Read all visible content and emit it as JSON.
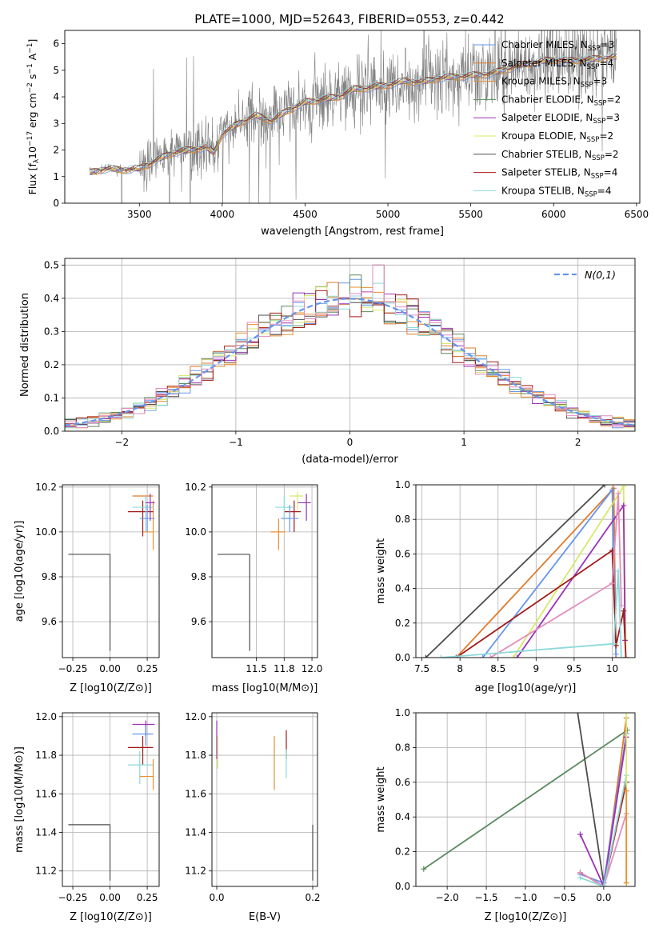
{
  "figure_title": "PLATE=1000, MJD=52643, FIBERID=0553, z=0.442",
  "colors": {
    "Chabrier MILES": "#6495ed",
    "Salpeter MILES": "#e07b2a",
    "Kroupa MILES": "#e8902f",
    "Chabrier ELODIE": "#5a8a5e",
    "Salpeter ELODIE": "#9b30b8",
    "Kroupa ELODIE": "#d8e86a",
    "Chabrier STELIB": "#4d4d4d",
    "Salpeter STELIB": "#a31a1a",
    "Kroupa STELIB": "#8cd9d9",
    "pink": "#e38cbd",
    "data": "#808080",
    "normal": "#6495ed"
  },
  "chart_data": [
    {
      "id": "spectrum",
      "type": "line",
      "xlabel": "wavelength [Angstrom, rest frame]",
      "ylabel": "Flux [f",
      "ylabel_unit": "10",
      "ylabel_rest": " erg cm",
      "xlim": [
        3050,
        6520
      ],
      "ylim": [
        0,
        6.5
      ],
      "xticks": [
        3500,
        4000,
        4500,
        5000,
        5500,
        6000,
        6500
      ],
      "yticks": [
        0,
        1,
        2,
        3,
        4,
        5,
        6
      ],
      "legend_position": "top-right",
      "legend": [
        {
          "model": "Chabrier MILES",
          "n": "3"
        },
        {
          "model": "Salpeter MILES",
          "n": "4"
        },
        {
          "model": "Kroupa MILES",
          "n": "3"
        },
        {
          "model": "Chabrier ELODIE",
          "n": "2"
        },
        {
          "model": "Salpeter ELODIE",
          "n": "3"
        },
        {
          "model": "Kroupa ELODIE",
          "n": "2"
        },
        {
          "model": "Chabrier STELIB",
          "n": "2"
        },
        {
          "model": "Salpeter STELIB",
          "n": "4"
        },
        {
          "model": "Kroupa STELIB",
          "n": "4"
        }
      ],
      "data_start": 3200,
      "data_end": 6380,
      "continuum": [
        [
          3200,
          1.15
        ],
        [
          3300,
          1.3
        ],
        [
          3400,
          1.25
        ],
        [
          3500,
          1.3
        ],
        [
          3600,
          1.6
        ],
        [
          3700,
          1.9
        ],
        [
          3800,
          2.0
        ],
        [
          3900,
          2.1
        ],
        [
          3950,
          1.9
        ],
        [
          4000,
          2.6
        ],
        [
          4100,
          3.0
        ],
        [
          4200,
          3.3
        ],
        [
          4300,
          3.1
        ],
        [
          4400,
          3.5
        ],
        [
          4500,
          3.8
        ],
        [
          4600,
          3.9
        ],
        [
          4700,
          4.0
        ],
        [
          4800,
          4.3
        ],
        [
          4900,
          4.35
        ],
        [
          5000,
          4.45
        ],
        [
          5100,
          4.6
        ],
        [
          5200,
          4.55
        ],
        [
          5300,
          4.7
        ],
        [
          5400,
          4.75
        ],
        [
          5500,
          4.8
        ],
        [
          5600,
          4.85
        ],
        [
          5700,
          5.0
        ],
        [
          5800,
          5.2
        ],
        [
          5900,
          5.3
        ],
        [
          6000,
          5.4
        ],
        [
          6100,
          5.35
        ],
        [
          6200,
          5.4
        ],
        [
          6300,
          5.45
        ],
        [
          6380,
          5.5
        ]
      ]
    },
    {
      "id": "residuals",
      "type": "step",
      "xlabel": "(data-model)/error",
      "ylabel": "Normed distribution",
      "xlim": [
        -2.5,
        2.5
      ],
      "ylim": [
        0,
        0.52
      ],
      "xticks": [
        -2,
        -1,
        0,
        1,
        2
      ],
      "xtick_labels": [
        "−2",
        "−1",
        "0",
        "1",
        "2"
      ],
      "yticks": [
        0,
        0.1,
        0.2,
        0.3,
        0.4,
        0.5
      ],
      "ytick_labels": [
        "0.0",
        "0.1",
        "0.2",
        "0.3",
        "0.4",
        "0.5"
      ],
      "legend_label": "N(0,1)",
      "legend_position": "top-right",
      "grid": true
    },
    {
      "id": "age-vs-Z",
      "type": "errorbar",
      "xlabel": "Z [log10(Z/Z⊙)]",
      "ylabel": "age [log10(age/yr)]",
      "xlim": [
        -0.32,
        0.33
      ],
      "ylim": [
        9.44,
        10.21
      ],
      "xticks": [
        -0.25,
        0.0,
        0.25
      ],
      "xtick_labels": [
        "−0.25",
        "0.00",
        "0.25"
      ],
      "yticks": [
        9.6,
        9.8,
        10.0,
        10.2
      ],
      "ytick_labels": [
        "9.6",
        "9.8",
        "10.0",
        "10.2"
      ],
      "grid": true,
      "points": [
        {
          "c": "Chabrier STELIB",
          "x": 0.0,
          "xl": -0.28,
          "xh": 0.0,
          "y": 9.9,
          "yl": 9.47,
          "yh": 9.9
        },
        {
          "c": "Salpeter MILES",
          "x": 0.22,
          "xl": 0.15,
          "xh": 0.29,
          "y": 10.16,
          "yl": 10.16,
          "yh": 10.16
        },
        {
          "c": "Kroupa MILES",
          "x": 0.29,
          "xl": 0.22,
          "xh": 0.29,
          "y": 10.0,
          "yl": 9.92,
          "yh": 10.14
        },
        {
          "c": "Salpeter STELIB",
          "x": 0.22,
          "xl": 0.12,
          "xh": 0.29,
          "y": 10.09,
          "yl": 9.98,
          "yh": 10.14
        },
        {
          "c": "Kroupa STELIB",
          "x": 0.24,
          "xl": 0.15,
          "xh": 0.29,
          "y": 10.11,
          "yl": 10.0,
          "yh": 10.16
        },
        {
          "c": "Chabrier MILES",
          "x": 0.25,
          "xl": 0.2,
          "xh": 0.3,
          "y": 10.06,
          "yl": 10.0,
          "yh": 10.12
        },
        {
          "c": "Salpeter ELODIE",
          "x": 0.27,
          "xl": 0.24,
          "xh": 0.3,
          "y": 10.13,
          "yl": 10.05,
          "yh": 10.17
        }
      ]
    },
    {
      "id": "age-vs-mass",
      "type": "errorbar",
      "xlabel": "mass [log10(M/M⊙)]",
      "xlim": [
        11.1,
        12.05
      ],
      "ylim": [
        9.44,
        10.21
      ],
      "xticks": [
        11.5,
        11.75,
        12.0
      ],
      "xtick_labels": [
        "11.5",
        "11.8",
        "12.0"
      ],
      "yticks": [
        9.6,
        9.8,
        10.0,
        10.2
      ],
      "ytick_labels": [
        "9.6",
        "9.8",
        "10.0",
        "10.2"
      ],
      "grid": true,
      "points": [
        {
          "c": "Chabrier STELIB",
          "x": 11.44,
          "xl": 11.15,
          "xh": 11.44,
          "y": 9.9,
          "yl": 9.47,
          "yh": 9.9
        },
        {
          "c": "Kroupa MILES",
          "x": 11.7,
          "xl": 11.63,
          "xh": 11.76,
          "y": 10.0,
          "yl": 9.92,
          "yh": 10.06
        },
        {
          "c": "Salpeter STELIB",
          "x": 11.84,
          "xl": 11.75,
          "xh": 11.9,
          "y": 10.09,
          "yl": 10.0,
          "yh": 10.14
        },
        {
          "c": "Kroupa STELIB",
          "x": 11.75,
          "xl": 11.67,
          "xh": 11.83,
          "y": 10.11,
          "yl": 10.05,
          "yh": 10.16
        },
        {
          "c": "Chabrier MILES",
          "x": 11.8,
          "xl": 11.72,
          "xh": 11.88,
          "y": 10.06,
          "yl": 10.0,
          "yh": 10.12
        },
        {
          "c": "Salpeter ELODIE",
          "x": 11.95,
          "xl": 11.87,
          "xh": 11.99,
          "y": 10.13,
          "yl": 10.05,
          "yh": 10.17
        },
        {
          "c": "Kroupa ELODIE",
          "x": 11.87,
          "xl": 11.8,
          "xh": 11.92,
          "y": 10.16,
          "yl": 10.1,
          "yh": 10.18
        }
      ]
    },
    {
      "id": "mass-weight-vs-age",
      "type": "line",
      "xlabel": "age [log10(age/yr)]",
      "ylabel": "mass weight",
      "xlim": [
        7.42,
        10.3
      ],
      "ylim": [
        0,
        1
      ],
      "xticks": [
        7.5,
        8.0,
        8.5,
        9.0,
        9.5,
        10.0
      ],
      "yticks": [
        0,
        0.2,
        0.4,
        0.6,
        0.8,
        1.0
      ],
      "ytick_labels": [
        "0.0",
        "0.2",
        "0.4",
        "0.6",
        "0.8",
        "1.0"
      ],
      "grid": true,
      "series": [
        {
          "c": "Chabrier STELIB",
          "points": [
            [
              7.55,
              0.0
            ],
            [
              9.9,
              1.0
            ]
          ]
        },
        {
          "c": "Salpeter MILES",
          "points": [
            [
              7.95,
              0.0
            ],
            [
              10.02,
              0.98
            ],
            [
              10.05,
              0.0
            ]
          ]
        },
        {
          "c": "Chabrier MILES",
          "points": [
            [
              8.3,
              0.0
            ],
            [
              10.0,
              0.97
            ],
            [
              10.05,
              0.02
            ]
          ]
        },
        {
          "c": "Kroupa ELODIE",
          "points": [
            [
              8.7,
              0.0
            ],
            [
              10.15,
              0.99
            ],
            [
              10.18,
              0.0
            ]
          ]
        },
        {
          "c": "Salpeter ELODIE",
          "points": [
            [
              8.75,
              0.0
            ],
            [
              10.15,
              0.88
            ],
            [
              10.17,
              0.1
            ]
          ]
        },
        {
          "c": "Salpeter STELIB",
          "points": [
            [
              7.95,
              0.0
            ],
            [
              10.0,
              0.62
            ],
            [
              10.05,
              0.07
            ],
            [
              10.15,
              0.27
            ],
            [
              10.18,
              0.0
            ]
          ]
        },
        {
          "c": "pink",
          "points": [
            [
              8.4,
              0.0
            ],
            [
              10.0,
              0.43
            ],
            [
              10.08,
              0.95
            ],
            [
              10.12,
              0.3
            ]
          ]
        },
        {
          "c": "Kroupa STELIB",
          "points": [
            [
              7.75,
              0.0
            ],
            [
              10.02,
              0.08
            ],
            [
              10.08,
              0.5
            ],
            [
              10.12,
              0.0
            ]
          ]
        }
      ]
    },
    {
      "id": "mass-vs-Z",
      "type": "errorbar",
      "xlabel": "Z [log10(Z/Z⊙)]",
      "ylabel": "mass [log10(M/M⊙)]",
      "xlim": [
        -0.32,
        0.33
      ],
      "ylim": [
        11.12,
        12.02
      ],
      "xticks": [
        -0.25,
        0.0,
        0.25
      ],
      "xtick_labels": [
        "−0.25",
        "0.00",
        "0.25"
      ],
      "yticks": [
        11.2,
        11.4,
        11.6,
        11.8,
        12.0
      ],
      "ytick_labels": [
        "11.2",
        "11.4",
        "11.6",
        "11.8",
        "12.0"
      ],
      "grid": true,
      "points": [
        {
          "c": "Chabrier STELIB",
          "x": 0.0,
          "xl": -0.28,
          "xh": 0.0,
          "y": 11.44,
          "yl": 11.15,
          "yh": 11.44
        },
        {
          "c": "Salpeter ELODIE",
          "x": 0.24,
          "xl": 0.15,
          "xh": 0.3,
          "y": 11.96,
          "yl": 11.9,
          "yh": 11.98
        },
        {
          "c": "Chabrier MILES",
          "x": 0.24,
          "xl": 0.15,
          "xh": 0.29,
          "y": 11.91,
          "yl": 11.85,
          "yh": 11.95
        },
        {
          "c": "Salpeter STELIB",
          "x": 0.22,
          "xl": 0.12,
          "xh": 0.29,
          "y": 11.84,
          "yl": 11.75,
          "yh": 11.9
        },
        {
          "c": "Kroupa STELIB",
          "x": 0.2,
          "xl": 0.12,
          "xh": 0.29,
          "y": 11.75,
          "yl": 11.65,
          "yh": 11.82
        },
        {
          "c": "Kroupa MILES",
          "x": 0.29,
          "xl": 0.2,
          "xh": 0.29,
          "y": 11.69,
          "yl": 11.62,
          "yh": 11.78
        }
      ]
    },
    {
      "id": "mass-vs-EBV",
      "type": "errorbar",
      "xlabel": "E(B-V)",
      "xlim": [
        -0.01,
        0.21
      ],
      "ylim": [
        11.12,
        12.02
      ],
      "xticks": [
        0.0,
        0.2
      ],
      "xtick_labels": [
        "0.0",
        "0.2"
      ],
      "yticks": [
        11.2,
        11.4,
        11.6,
        11.8,
        12.0
      ],
      "ytick_labels": [
        "11.2",
        "11.4",
        "11.6",
        "11.8",
        "12.0"
      ],
      "grid": true,
      "points": [
        {
          "c": "Chabrier STELIB",
          "x": 0.2,
          "xl": 0.2,
          "xh": 0.2,
          "y": 11.44,
          "yl": 11.15,
          "yh": 11.44
        },
        {
          "c": "Salpeter ELODIE",
          "x": 0.0,
          "xl": 0.0,
          "xh": 0.0,
          "y": 11.9,
          "yl": 11.78,
          "yh": 11.98
        },
        {
          "c": "Kroupa ELODIE",
          "x": 0.002,
          "xl": 0.002,
          "xh": 0.002,
          "y": 11.82,
          "yl": 11.73,
          "yh": 11.9
        },
        {
          "c": "Salpeter STELIB",
          "x": 0.145,
          "xl": 0.145,
          "xh": 0.145,
          "y": 11.85,
          "yl": 11.78,
          "yh": 11.93
        },
        {
          "c": "Kroupa MILES",
          "x": 0.12,
          "xl": 0.12,
          "xh": 0.12,
          "y": 11.78,
          "yl": 11.62,
          "yh": 11.9
        },
        {
          "c": "Kroupa STELIB",
          "x": 0.145,
          "xl": 0.145,
          "xh": 0.145,
          "y": 11.75,
          "yl": 11.68,
          "yh": 11.83
        }
      ]
    },
    {
      "id": "mass-weight-vs-Z",
      "type": "line",
      "xlabel": "Z [log10(Z/Z⊙)]",
      "ylabel": "mass weight",
      "xlim": [
        -2.4,
        0.4
      ],
      "ylim": [
        0,
        1
      ],
      "xticks": [
        -2.0,
        -1.5,
        -1.0,
        -0.5,
        0.0
      ],
      "xtick_labels": [
        "−2.0",
        "−1.5",
        "−1.0",
        "−0.5",
        "0.0"
      ],
      "yticks": [
        0,
        0.2,
        0.4,
        0.6,
        0.8,
        1.0
      ],
      "ytick_labels": [
        "0.0",
        "0.2",
        "0.4",
        "0.6",
        "0.8",
        "1.0"
      ],
      "grid": true,
      "series": [
        {
          "c": "Chabrier ELODIE",
          "points": [
            [
              -2.3,
              0.1
            ],
            [
              0.3,
              0.9
            ]
          ]
        },
        {
          "c": "Chabrier STELIB",
          "points": [
            [
              -0.35,
              1.05
            ],
            [
              0.0,
              0.02
            ]
          ]
        },
        {
          "c": "Salpeter MILES",
          "points": [
            [
              -0.3,
              0.08
            ],
            [
              0.0,
              0.0
            ],
            [
              0.29,
              0.97
            ]
          ]
        },
        {
          "c": "Chabrier MILES",
          "points": [
            [
              -0.3,
              0.07
            ],
            [
              0.0,
              0.02
            ],
            [
              0.29,
              0.88
            ]
          ]
        },
        {
          "c": "Salpeter ELODIE",
          "points": [
            [
              -0.3,
              0.3
            ],
            [
              0.0,
              0.0
            ],
            [
              0.29,
              0.86
            ]
          ]
        },
        {
          "c": "Salpeter STELIB",
          "points": [
            [
              -0.3,
              0.08
            ],
            [
              0.0,
              0.0
            ],
            [
              0.29,
              0.6
            ]
          ]
        },
        {
          "c": "pink",
          "points": [
            [
              -0.3,
              0.08
            ],
            [
              0.0,
              0.0
            ],
            [
              0.29,
              0.42
            ]
          ]
        },
        {
          "c": "Kroupa STELIB",
          "points": [
            [
              -0.3,
              0.05
            ],
            [
              0.0,
              0.0
            ],
            [
              0.29,
              0.64
            ]
          ]
        },
        {
          "c": "Kroupa ELODIE",
          "points": [
            [
              0.29,
              0.02
            ],
            [
              0.29,
              1.0
            ]
          ]
        },
        {
          "c": "Kroupa MILES",
          "points": [
            [
              0.29,
              0.55
            ],
            [
              0.29,
              0.02
            ]
          ]
        }
      ]
    }
  ]
}
